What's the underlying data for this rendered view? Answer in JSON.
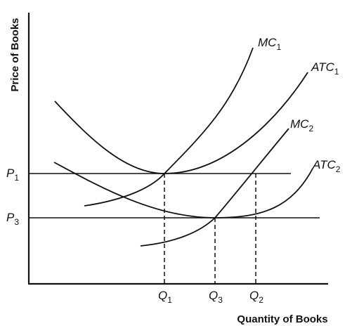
{
  "axes": {
    "y_title": "Price of Books",
    "x_title": "Quantity of Books"
  },
  "price_levels": [
    {
      "letter": "P",
      "sub": "1"
    },
    {
      "letter": "P",
      "sub": "3"
    }
  ],
  "quantity_levels": [
    {
      "letter": "Q",
      "sub": "1"
    },
    {
      "letter": "Q",
      "sub": "3"
    },
    {
      "letter": "Q",
      "sub": "2"
    }
  ],
  "curves": {
    "mc1": {
      "letter": "MC",
      "sub": "1"
    },
    "atc1": {
      "letter": "ATC",
      "sub": "1"
    },
    "mc2": {
      "letter": "MC",
      "sub": "2"
    },
    "atc2": {
      "letter": "ATC",
      "sub": "2"
    }
  }
}
